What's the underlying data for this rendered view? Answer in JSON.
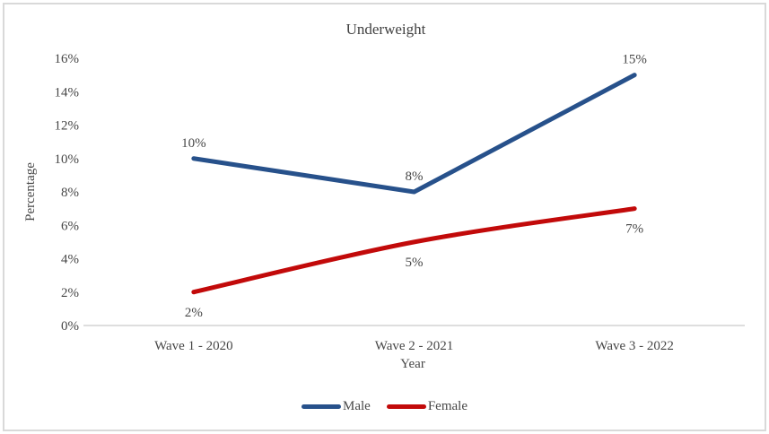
{
  "chart_data": {
    "type": "line",
    "title": "Underweight",
    "xlabel": "Year",
    "ylabel": "Percentage",
    "categories": [
      "Wave 1 - 2020",
      "Wave 2 - 2021",
      "Wave 3 - 2022"
    ],
    "series": [
      {
        "name": "Male",
        "color": "#27518B",
        "values": [
          10,
          8,
          15
        ],
        "point_labels": [
          "10%",
          "8%",
          "15%"
        ],
        "label_position": "above",
        "smooth": false
      },
      {
        "name": "Female",
        "color": "#C20A0A",
        "values": [
          2,
          5,
          7
        ],
        "point_labels": [
          "2%",
          "5%",
          "7%"
        ],
        "label_position": "below",
        "smooth": true
      }
    ],
    "y_axis": {
      "min": 0,
      "max": 16,
      "step": 2,
      "tick_labels": [
        "0%",
        "2%",
        "4%",
        "6%",
        "8%",
        "10%",
        "12%",
        "14%",
        "16%"
      ]
    },
    "legend_position": "bottom",
    "grid": false
  },
  "colors": {
    "axis_line": "#C9C9C9",
    "frame_border": "#D9D9D9",
    "text": "#474747",
    "title_text": "#404040",
    "background": "#FFFFFF"
  }
}
